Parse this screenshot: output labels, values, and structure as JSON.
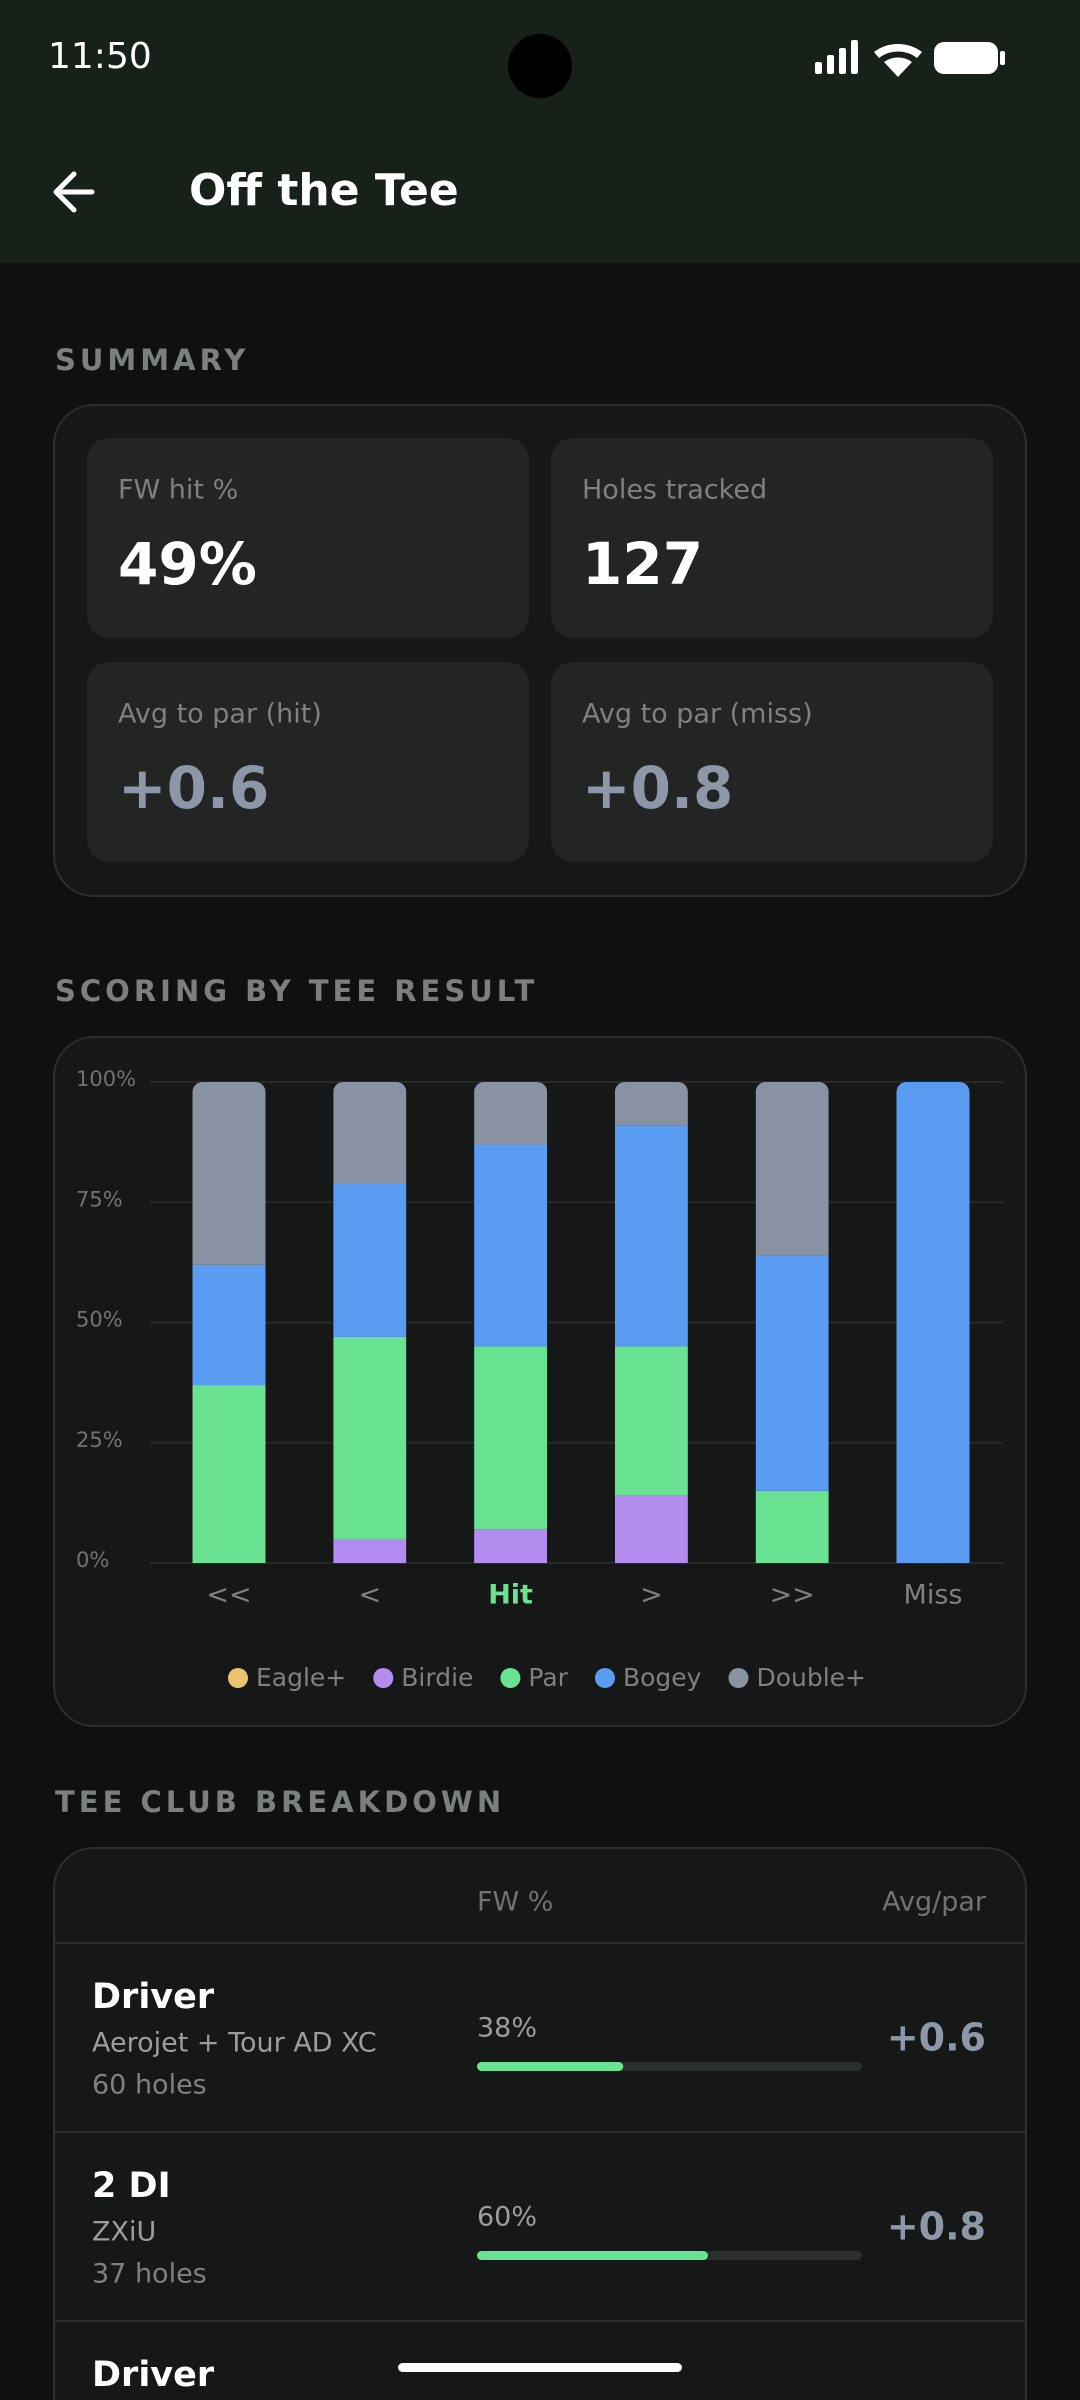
{
  "status_bar": {
    "time": "11:50"
  },
  "header": {
    "title": "Off the Tee"
  },
  "summary": {
    "heading": "SUMMARY",
    "cards": [
      {
        "label": "FW hit %",
        "value": "49%"
      },
      {
        "label": "Holes tracked",
        "value": "127"
      },
      {
        "label": "Avg to par (hit)",
        "value": "+0.6"
      },
      {
        "label": "Avg to par (miss)",
        "value": "+0.8"
      }
    ]
  },
  "scoring": {
    "heading": "SCORING BY TEE RESULT"
  },
  "chart_data": {
    "type": "stacked_bar",
    "categories": [
      "<<",
      "<",
      "Hit",
      ">",
      ">>",
      "Miss"
    ],
    "highlight": 2,
    "ylim": [
      0,
      100
    ],
    "yticks": [
      {
        "value": 0,
        "label": "0%"
      },
      {
        "value": 25,
        "label": "25%"
      },
      {
        "value": 50,
        "label": "50%"
      },
      {
        "value": 75,
        "label": "75%"
      },
      {
        "value": 100,
        "label": "100%"
      }
    ],
    "grid": true,
    "series": [
      {
        "name": "Eagle+",
        "color": "#eac46f",
        "values": [
          0,
          0,
          0,
          0,
          0,
          0
        ]
      },
      {
        "name": "Birdie",
        "color": "#b38cf0",
        "values": [
          0,
          5,
          7,
          14,
          0,
          0
        ]
      },
      {
        "name": "Par",
        "color": "#69e291",
        "values": [
          37,
          42,
          38,
          31,
          15,
          0
        ]
      },
      {
        "name": "Bogey",
        "color": "#5a9cf2",
        "values": [
          25,
          32,
          42,
          46,
          49,
          100
        ]
      },
      {
        "name": "Double+",
        "color": "#8892a3",
        "values": [
          38,
          21,
          13,
          9,
          36,
          0
        ]
      }
    ]
  },
  "breakdown": {
    "heading": "TEE CLUB BREAKDOWN",
    "columns": [
      "FW %",
      "Avg/par"
    ],
    "rows": [
      {
        "club": "Driver",
        "shaft": "Aerojet + Tour AD XC",
        "holes": "60 holes",
        "fw": {
          "value": 38,
          "label": "38%"
        },
        "avg": "+0.6"
      },
      {
        "club": "2 DI",
        "shaft": "ZXiU",
        "holes": "37 holes",
        "fw": {
          "value": 60,
          "label": "60%"
        },
        "avg": "+0.8"
      },
      {
        "club": "Driver"
      }
    ]
  }
}
